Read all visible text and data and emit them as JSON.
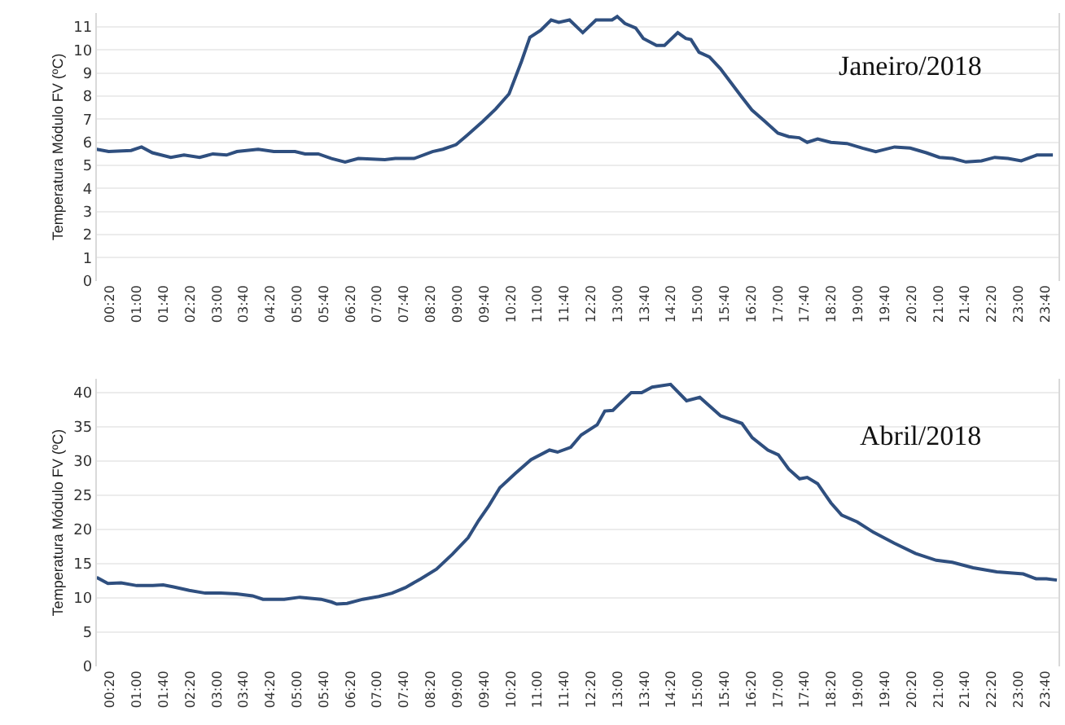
{
  "chart_data": [
    {
      "type": "line",
      "ylabel": "Temperatura Módulo FV (ºC)",
      "annotations": [
        "Janeiro/2018"
      ],
      "grid": "y",
      "marker": "none",
      "line_style": "solid",
      "xlim": [
        0,
        24
      ],
      "ylim": [
        0,
        11.6
      ],
      "yticks": [
        0,
        1,
        2,
        3,
        4,
        5,
        6,
        7,
        8,
        9,
        10,
        11
      ],
      "xticks": [
        {
          "value": 0.333,
          "label": "00:20"
        },
        {
          "value": 1,
          "label": "01:00"
        },
        {
          "value": 1.667,
          "label": "01:40"
        },
        {
          "value": 2.333,
          "label": "02:20"
        },
        {
          "value": 3,
          "label": "03:00"
        },
        {
          "value": 3.667,
          "label": "03:40"
        },
        {
          "value": 4.333,
          "label": "04:20"
        },
        {
          "value": 5,
          "label": "05:00"
        },
        {
          "value": 5.667,
          "label": "05:40"
        },
        {
          "value": 6.333,
          "label": "06:20"
        },
        {
          "value": 7,
          "label": "07:00"
        },
        {
          "value": 7.667,
          "label": "07:40"
        },
        {
          "value": 8.333,
          "label": "08:20"
        },
        {
          "value": 9,
          "label": "09:00"
        },
        {
          "value": 9.667,
          "label": "09:40"
        },
        {
          "value": 10.333,
          "label": "10:20"
        },
        {
          "value": 11,
          "label": "11:00"
        },
        {
          "value": 11.667,
          "label": "11:40"
        },
        {
          "value": 12.333,
          "label": "12:20"
        },
        {
          "value": 13,
          "label": "13:00"
        },
        {
          "value": 13.667,
          "label": "13:40"
        },
        {
          "value": 14.333,
          "label": "14:20"
        },
        {
          "value": 15,
          "label": "15:00"
        },
        {
          "value": 15.667,
          "label": "15:40"
        },
        {
          "value": 16.333,
          "label": "16:20"
        },
        {
          "value": 17,
          "label": "17:00"
        },
        {
          "value": 17.667,
          "label": "17:40"
        },
        {
          "value": 18.333,
          "label": "18:20"
        },
        {
          "value": 19,
          "label": "19:00"
        },
        {
          "value": 19.667,
          "label": "19:40"
        },
        {
          "value": 20.333,
          "label": "20:20"
        },
        {
          "value": 21,
          "label": "21:00"
        },
        {
          "value": 21.667,
          "label": "21:40"
        },
        {
          "value": 22.333,
          "label": "22:20"
        },
        {
          "value": 23,
          "label": "23:00"
        },
        {
          "value": 23.667,
          "label": "23:40"
        }
      ],
      "series": [
        {
          "color": "#2f4f7f",
          "x": [
            0,
            0.3,
            0.86,
            1.12,
            1.39,
            1.85,
            2.18,
            2.57,
            2.9,
            3.24,
            3.5,
            4.03,
            4.42,
            4.95,
            5.2,
            5.53,
            5.86,
            6.2,
            6.53,
            7.19,
            7.45,
            7.92,
            8.38,
            8.64,
            8.97,
            9.24,
            9.63,
            9.96,
            10.29,
            10.6,
            10.81,
            11.08,
            11.34,
            11.53,
            11.8,
            12.13,
            12.46,
            12.86,
            12.99,
            13.18,
            13.45,
            13.64,
            13.97,
            14.17,
            14.5,
            14.7,
            14.83,
            15.03,
            15.29,
            15.56,
            15.82,
            16.08,
            16.35,
            16.68,
            17.0,
            17.27,
            17.53,
            17.73,
            17.99,
            18.32,
            18.72,
            19.11,
            19.44,
            19.91,
            20.3,
            20.7,
            21.03,
            21.36,
            21.69,
            22.08,
            22.41,
            22.74,
            23.07,
            23.46,
            23.86
          ],
          "values": [
            5.7,
            5.6,
            5.65,
            5.8,
            5.55,
            5.35,
            5.45,
            5.35,
            5.5,
            5.45,
            5.6,
            5.7,
            5.6,
            5.6,
            5.5,
            5.5,
            5.3,
            5.15,
            5.3,
            5.25,
            5.3,
            5.3,
            5.6,
            5.7,
            5.9,
            6.3,
            6.9,
            7.45,
            8.1,
            9.5,
            10.55,
            10.85,
            11.3,
            11.2,
            11.3,
            10.75,
            11.3,
            11.3,
            11.45,
            11.15,
            10.95,
            10.5,
            10.2,
            10.2,
            10.75,
            10.5,
            10.45,
            9.9,
            9.7,
            9.2,
            8.6,
            8.0,
            7.4,
            6.9,
            6.4,
            6.25,
            6.2,
            6.0,
            6.15,
            6.0,
            5.95,
            5.75,
            5.6,
            5.8,
            5.75,
            5.55,
            5.35,
            5.3,
            5.15,
            5.2,
            5.35,
            5.3,
            5.2,
            5.45,
            5.45
          ]
        }
      ]
    },
    {
      "type": "line",
      "ylabel": "Temperatura Módulo FV (ºC)",
      "annotations": [
        "Abril/2018"
      ],
      "grid": "y",
      "marker": "none",
      "line_style": "solid",
      "xlim": [
        0,
        24
      ],
      "ylim": [
        0,
        42
      ],
      "yticks": [
        0,
        5,
        10,
        15,
        20,
        25,
        30,
        35,
        40
      ],
      "xticks": [
        {
          "value": 0.333,
          "label": "00:20"
        },
        {
          "value": 1,
          "label": "01:00"
        },
        {
          "value": 1.667,
          "label": "01:40"
        },
        {
          "value": 2.333,
          "label": "02:20"
        },
        {
          "value": 3,
          "label": "03:00"
        },
        {
          "value": 3.667,
          "label": "03:40"
        },
        {
          "value": 4.333,
          "label": "04:20"
        },
        {
          "value": 5,
          "label": "05:00"
        },
        {
          "value": 5.667,
          "label": "05:40"
        },
        {
          "value": 6.333,
          "label": "06:20"
        },
        {
          "value": 7,
          "label": "07:00"
        },
        {
          "value": 7.667,
          "label": "07:40"
        },
        {
          "value": 8.333,
          "label": "08:20"
        },
        {
          "value": 9,
          "label": "09:00"
        },
        {
          "value": 9.667,
          "label": "09:40"
        },
        {
          "value": 10.333,
          "label": "10:20"
        },
        {
          "value": 11,
          "label": "11:00"
        },
        {
          "value": 11.667,
          "label": "11:40"
        },
        {
          "value": 12.333,
          "label": "12:20"
        },
        {
          "value": 13,
          "label": "13:00"
        },
        {
          "value": 13.667,
          "label": "13:40"
        },
        {
          "value": 14.333,
          "label": "14:20"
        },
        {
          "value": 15,
          "label": "15:00"
        },
        {
          "value": 15.667,
          "label": "15:40"
        },
        {
          "value": 16.333,
          "label": "16:20"
        },
        {
          "value": 17,
          "label": "17:00"
        },
        {
          "value": 17.667,
          "label": "17:40"
        },
        {
          "value": 18.333,
          "label": "18:20"
        },
        {
          "value": 19,
          "label": "19:00"
        },
        {
          "value": 19.667,
          "label": "19:40"
        },
        {
          "value": 20.333,
          "label": "20:20"
        },
        {
          "value": 21,
          "label": "21:00"
        },
        {
          "value": 21.667,
          "label": "21:40"
        },
        {
          "value": 22.333,
          "label": "22:20"
        },
        {
          "value": 23,
          "label": "23:00"
        },
        {
          "value": 23.667,
          "label": "23:40"
        }
      ],
      "series": [
        {
          "color": "#2f4f7f",
          "x": [
            0,
            0.28,
            0.61,
            1.0,
            1.4,
            1.66,
            1.92,
            2.31,
            2.71,
            3.1,
            3.49,
            3.89,
            4.15,
            4.68,
            5.07,
            5.6,
            5.86,
            5.99,
            6.25,
            6.64,
            7.04,
            7.37,
            7.7,
            8.09,
            8.48,
            8.88,
            9.27,
            9.53,
            9.79,
            10.06,
            10.45,
            10.84,
            11.3,
            11.5,
            11.83,
            12.09,
            12.49,
            12.68,
            12.88,
            13.34,
            13.6,
            13.86,
            14.32,
            14.72,
            15.05,
            15.57,
            16.1,
            16.36,
            16.75,
            17.01,
            17.27,
            17.54,
            17.73,
            17.99,
            18.32,
            18.59,
            18.98,
            19.38,
            19.9,
            20.43,
            20.95,
            21.35,
            21.87,
            22.46,
            23.12,
            23.44,
            23.7,
            23.96
          ],
          "values": [
            13.0,
            12.1,
            12.2,
            11.8,
            11.8,
            11.9,
            11.6,
            11.1,
            10.7,
            10.7,
            10.6,
            10.3,
            9.8,
            9.8,
            10.1,
            9.8,
            9.4,
            9.1,
            9.2,
            9.8,
            10.2,
            10.7,
            11.5,
            12.8,
            14.2,
            16.4,
            18.8,
            21.3,
            23.5,
            26.1,
            28.2,
            30.2,
            31.6,
            31.3,
            32.0,
            33.8,
            35.3,
            37.3,
            37.4,
            40.0,
            40.0,
            40.8,
            41.2,
            38.8,
            39.3,
            36.6,
            35.5,
            33.4,
            31.6,
            30.9,
            28.8,
            27.4,
            27.6,
            26.7,
            23.9,
            22.1,
            21.1,
            19.6,
            18.0,
            16.5,
            15.5,
            15.2,
            14.4,
            13.8,
            13.5,
            12.8,
            12.8,
            12.6
          ]
        }
      ]
    }
  ]
}
